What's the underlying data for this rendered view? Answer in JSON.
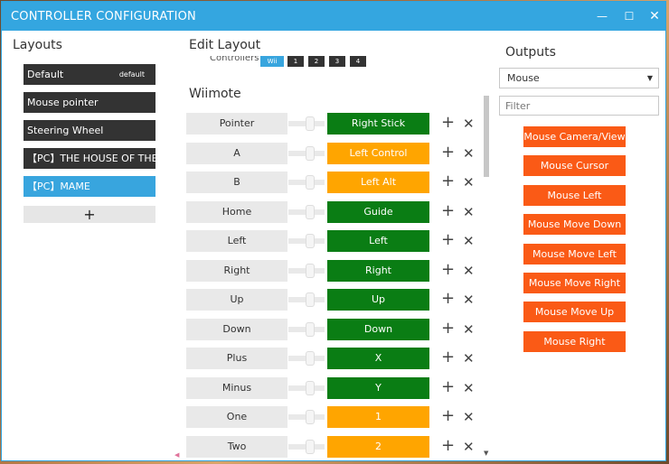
{
  "window": {
    "title": "CONTROLLER CONFIGURATION",
    "controls": {
      "minimize": "—",
      "maximize": "☐",
      "close": "✕"
    }
  },
  "layouts": {
    "heading": "Layouts",
    "items": [
      {
        "label": "Default",
        "tag": "default",
        "selected": false
      },
      {
        "label": "Mouse pointer",
        "tag": "",
        "selected": false
      },
      {
        "label": "Steering Wheel",
        "tag": "",
        "selected": false
      },
      {
        "label": "【PC】THE HOUSE OF THE DE",
        "tag": "",
        "selected": false
      },
      {
        "label": "【PC】MAME",
        "tag": "",
        "selected": true
      }
    ],
    "add_label": "+"
  },
  "edit_layout": {
    "heading": "Edit Layout",
    "controllers_label": "Controllers",
    "controller_chips": [
      "Wii",
      "1",
      "2",
      "3",
      "4"
    ],
    "section_title": "Wiimote",
    "mappings": [
      {
        "input": "Pointer",
        "output": "Right Stick",
        "color": "green"
      },
      {
        "input": "A",
        "output": "Left Control",
        "color": "orange"
      },
      {
        "input": "B",
        "output": "Left Alt",
        "color": "orange"
      },
      {
        "input": "Home",
        "output": "Guide",
        "color": "green"
      },
      {
        "input": "Left",
        "output": "Left",
        "color": "green"
      },
      {
        "input": "Right",
        "output": "Right",
        "color": "green"
      },
      {
        "input": "Up",
        "output": "Up",
        "color": "green"
      },
      {
        "input": "Down",
        "output": "Down",
        "color": "green"
      },
      {
        "input": "Plus",
        "output": "X",
        "color": "green"
      },
      {
        "input": "Minus",
        "output": "Y",
        "color": "green"
      },
      {
        "input": "One",
        "output": "1",
        "color": "orange"
      },
      {
        "input": "Two",
        "output": "2",
        "color": "orange"
      }
    ],
    "add_icon": "+",
    "remove_icon": "✕"
  },
  "outputs": {
    "heading": "Outputs",
    "selected_type": "Mouse",
    "filter_placeholder": "Filter",
    "items": [
      "Mouse Camera/View",
      "Mouse Cursor",
      "Mouse Left",
      "Mouse Move Down",
      "Mouse Move Left",
      "Mouse Move Right",
      "Mouse Move Up",
      "Mouse Right"
    ]
  },
  "colors": {
    "titlebar": "#34a6e0",
    "selected": "#38a5de",
    "green": "#0a7d14",
    "orange": "#ffa500",
    "output_red": "#fa5a16",
    "dark": "#333333"
  }
}
